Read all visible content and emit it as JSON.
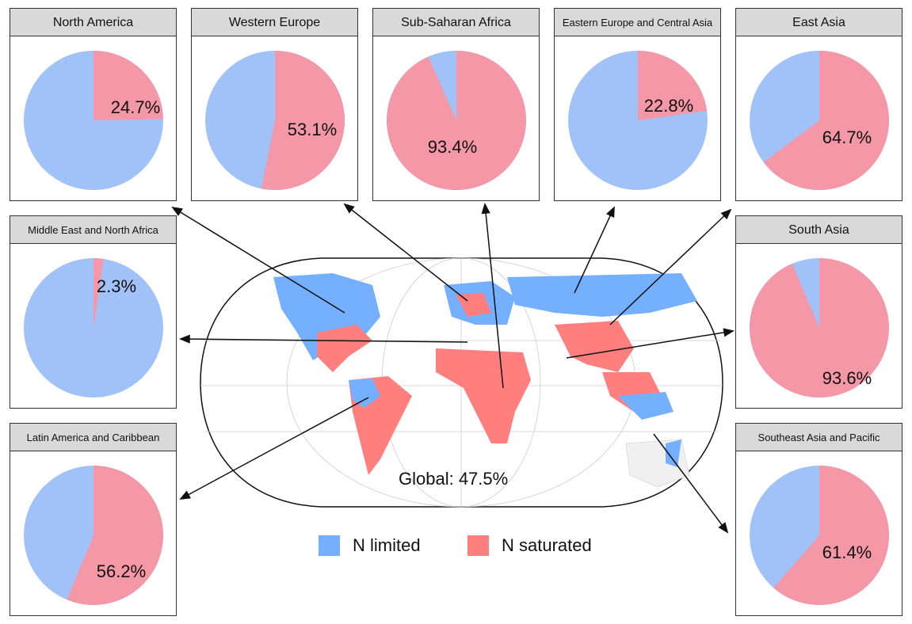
{
  "chart_data": {
    "type": "pie",
    "series_names": [
      "N limited",
      "N saturated"
    ],
    "colors": {
      "n_limited_pie": "#a0c2f8",
      "n_saturated_pie": "#f497a6",
      "n_limited_legend": "#74b0ff",
      "n_saturated_legend": "#ff7f7f"
    },
    "global_label": "Global: 47.5%",
    "regions": [
      {
        "name": "North America",
        "n_saturated_pct": 24.7,
        "label": "24.7%"
      },
      {
        "name": "Western Europe",
        "n_saturated_pct": 53.1,
        "label": "53.1%"
      },
      {
        "name": "Sub-Saharan Africa",
        "n_saturated_pct": 93.4,
        "label": "93.4%"
      },
      {
        "name": "Eastern Europe and Central Asia",
        "n_saturated_pct": 22.8,
        "label": "22.8%"
      },
      {
        "name": "East Asia",
        "n_saturated_pct": 64.7,
        "label": "64.7%"
      },
      {
        "name": "Middle East and North Africa",
        "n_saturated_pct": 2.3,
        "label": "2.3%"
      },
      {
        "name": "South Asia",
        "n_saturated_pct": 93.6,
        "label": "93.6%"
      },
      {
        "name": "Latin America and Caribbean",
        "n_saturated_pct": 56.2,
        "label": "56.2%"
      },
      {
        "name": "Southeast Asia and Pacific",
        "n_saturated_pct": 61.4,
        "label": "61.4%"
      }
    ]
  },
  "legend": [
    {
      "label": "N limited",
      "color": "#74b0ff"
    },
    {
      "label": "N saturated",
      "color": "#ff7f7f"
    }
  ]
}
